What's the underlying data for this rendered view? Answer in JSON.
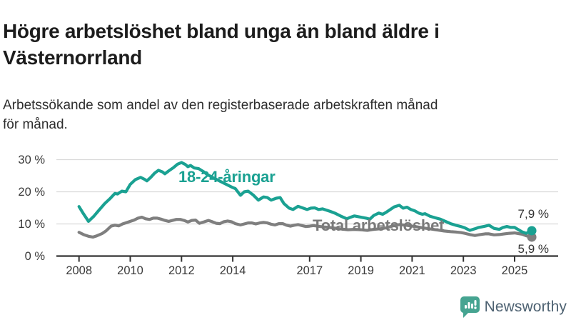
{
  "header": {
    "title": "Högre arbetslöshet bland unga än bland äldre i\nVästernorrland",
    "subtitle": "Arbetssökande som andel av den registerbaserade arbetskraften månad\nför månad."
  },
  "footer": {
    "brand": "Newsworthy",
    "logo_icon": "bar-chart-speech-bubble-icon",
    "brand_text_color": "#4e6272",
    "logo_color": "#46a491"
  },
  "chart_data": {
    "type": "line",
    "unit": "%",
    "grid": "horizontal",
    "legend_position": "inline-labels",
    "ylim": [
      0,
      30
    ],
    "xlim": [
      2008.0,
      2025.67
    ],
    "y_ticks": [
      {
        "value": 0,
        "label": "0 %"
      },
      {
        "value": 10,
        "label": "10 %"
      },
      {
        "value": 20,
        "label": "20 %"
      },
      {
        "value": 30,
        "label": "30 %"
      }
    ],
    "x_ticks": [
      {
        "year": 2008,
        "label": "2008"
      },
      {
        "year": 2010,
        "label": "2010"
      },
      {
        "year": 2012,
        "label": "2012"
      },
      {
        "year": 2014,
        "label": "2014"
      },
      {
        "year": 2017,
        "label": "2017"
      },
      {
        "year": 2019,
        "label": "2019"
      },
      {
        "year": 2021,
        "label": "2021"
      },
      {
        "year": 2023,
        "label": "2023"
      },
      {
        "year": 2025,
        "label": "2025"
      }
    ],
    "axis_color": "#333333",
    "gridline_color": "#d9d9d9",
    "tick_label_color": "#3a3a3a",
    "series": [
      {
        "name": "18-24-åringar",
        "color": "#1aa192",
        "end_label": "7,9 %",
        "end_value": 7.9,
        "points": [
          [
            2008.0,
            15.4
          ],
          [
            2008.17,
            13.2
          ],
          [
            2008.37,
            10.8
          ],
          [
            2008.58,
            12.4
          ],
          [
            2008.75,
            14.0
          ],
          [
            2009.0,
            16.3
          ],
          [
            2009.2,
            17.8
          ],
          [
            2009.4,
            19.5
          ],
          [
            2009.5,
            19.3
          ],
          [
            2009.67,
            20.2
          ],
          [
            2009.83,
            20.0
          ],
          [
            2010.0,
            22.3
          ],
          [
            2010.2,
            23.8
          ],
          [
            2010.4,
            24.5
          ],
          [
            2010.55,
            23.9
          ],
          [
            2010.65,
            23.4
          ],
          [
            2010.8,
            24.5
          ],
          [
            2010.95,
            25.8
          ],
          [
            2011.1,
            26.7
          ],
          [
            2011.25,
            26.2
          ],
          [
            2011.35,
            25.6
          ],
          [
            2011.5,
            26.5
          ],
          [
            2011.7,
            27.6
          ],
          [
            2011.85,
            28.6
          ],
          [
            2012.0,
            29.1
          ],
          [
            2012.15,
            28.5
          ],
          [
            2012.25,
            27.8
          ],
          [
            2012.35,
            28.2
          ],
          [
            2012.5,
            27.4
          ],
          [
            2012.67,
            27.2
          ],
          [
            2012.85,
            26.3
          ],
          [
            2013.0,
            25.4
          ],
          [
            2013.25,
            24.3
          ],
          [
            2013.5,
            23.3
          ],
          [
            2013.75,
            22.3
          ],
          [
            2014.0,
            21.3
          ],
          [
            2014.1,
            21.0
          ],
          [
            2014.3,
            18.9
          ],
          [
            2014.45,
            20.0
          ],
          [
            2014.6,
            20.2
          ],
          [
            2014.8,
            19.0
          ],
          [
            2015.0,
            17.4
          ],
          [
            2015.2,
            18.4
          ],
          [
            2015.35,
            18.2
          ],
          [
            2015.5,
            17.4
          ],
          [
            2015.7,
            18.0
          ],
          [
            2015.85,
            18.2
          ],
          [
            2016.0,
            16.3
          ],
          [
            2016.2,
            14.9
          ],
          [
            2016.35,
            14.5
          ],
          [
            2016.55,
            15.5
          ],
          [
            2016.75,
            14.9
          ],
          [
            2016.9,
            14.5
          ],
          [
            2017.05,
            14.9
          ],
          [
            2017.2,
            15.0
          ],
          [
            2017.35,
            14.5
          ],
          [
            2017.5,
            14.7
          ],
          [
            2017.65,
            14.3
          ],
          [
            2017.8,
            13.9
          ],
          [
            2018.0,
            13.3
          ],
          [
            2018.2,
            12.5
          ],
          [
            2018.45,
            11.6
          ],
          [
            2018.6,
            12.1
          ],
          [
            2018.75,
            12.5
          ],
          [
            2019.0,
            12.1
          ],
          [
            2019.2,
            11.8
          ],
          [
            2019.35,
            11.5
          ],
          [
            2019.5,
            12.6
          ],
          [
            2019.7,
            13.4
          ],
          [
            2019.85,
            13.0
          ],
          [
            2020.0,
            13.7
          ],
          [
            2020.15,
            14.5
          ],
          [
            2020.3,
            15.3
          ],
          [
            2020.5,
            15.8
          ],
          [
            2020.65,
            14.9
          ],
          [
            2020.8,
            15.2
          ],
          [
            2020.95,
            14.5
          ],
          [
            2021.1,
            14.1
          ],
          [
            2021.25,
            13.4
          ],
          [
            2021.4,
            13.0
          ],
          [
            2021.5,
            13.2
          ],
          [
            2021.7,
            12.4
          ],
          [
            2021.9,
            11.9
          ],
          [
            2022.1,
            11.5
          ],
          [
            2022.3,
            10.8
          ],
          [
            2022.5,
            10.1
          ],
          [
            2022.7,
            9.6
          ],
          [
            2022.9,
            9.2
          ],
          [
            2023.05,
            8.8
          ],
          [
            2023.25,
            8.0
          ],
          [
            2023.45,
            8.5
          ],
          [
            2023.6,
            8.9
          ],
          [
            2023.8,
            9.2
          ],
          [
            2024.0,
            9.6
          ],
          [
            2024.2,
            8.6
          ],
          [
            2024.4,
            8.3
          ],
          [
            2024.55,
            8.9
          ],
          [
            2024.7,
            9.2
          ],
          [
            2024.85,
            8.9
          ],
          [
            2025.0,
            8.9
          ],
          [
            2025.15,
            8.2
          ],
          [
            2025.3,
            7.5
          ],
          [
            2025.45,
            7.1
          ],
          [
            2025.67,
            7.9
          ]
        ]
      },
      {
        "name": "Total arbetslöshet",
        "color": "#7f7f7f",
        "end_label": "5,9 %",
        "end_value": 5.9,
        "points": [
          [
            2008.0,
            7.4
          ],
          [
            2008.2,
            6.6
          ],
          [
            2008.4,
            6.1
          ],
          [
            2008.55,
            5.9
          ],
          [
            2008.7,
            6.3
          ],
          [
            2008.9,
            7.0
          ],
          [
            2009.05,
            7.8
          ],
          [
            2009.25,
            9.3
          ],
          [
            2009.4,
            9.6
          ],
          [
            2009.55,
            9.4
          ],
          [
            2009.7,
            10.0
          ],
          [
            2009.85,
            10.4
          ],
          [
            2010.0,
            10.8
          ],
          [
            2010.15,
            11.2
          ],
          [
            2010.3,
            11.8
          ],
          [
            2010.45,
            12.1
          ],
          [
            2010.6,
            11.6
          ],
          [
            2010.75,
            11.4
          ],
          [
            2010.9,
            11.8
          ],
          [
            2011.05,
            11.8
          ],
          [
            2011.2,
            11.5
          ],
          [
            2011.35,
            11.1
          ],
          [
            2011.5,
            10.8
          ],
          [
            2011.65,
            11.1
          ],
          [
            2011.8,
            11.4
          ],
          [
            2011.95,
            11.4
          ],
          [
            2012.1,
            11.1
          ],
          [
            2012.25,
            10.6
          ],
          [
            2012.4,
            11.1
          ],
          [
            2012.55,
            11.2
          ],
          [
            2012.7,
            10.2
          ],
          [
            2012.9,
            10.7
          ],
          [
            2013.05,
            11.1
          ],
          [
            2013.2,
            10.7
          ],
          [
            2013.35,
            10.2
          ],
          [
            2013.5,
            10.1
          ],
          [
            2013.65,
            10.7
          ],
          [
            2013.8,
            10.9
          ],
          [
            2013.95,
            10.7
          ],
          [
            2014.1,
            10.1
          ],
          [
            2014.3,
            9.7
          ],
          [
            2014.45,
            10.0
          ],
          [
            2014.6,
            10.3
          ],
          [
            2014.75,
            10.3
          ],
          [
            2014.9,
            10.0
          ],
          [
            2015.05,
            10.3
          ],
          [
            2015.2,
            10.5
          ],
          [
            2015.35,
            10.3
          ],
          [
            2015.5,
            9.9
          ],
          [
            2015.65,
            9.7
          ],
          [
            2015.8,
            10.1
          ],
          [
            2015.95,
            10.1
          ],
          [
            2016.1,
            9.6
          ],
          [
            2016.25,
            9.3
          ],
          [
            2016.4,
            9.6
          ],
          [
            2016.55,
            9.8
          ],
          [
            2016.7,
            9.5
          ],
          [
            2016.85,
            9.2
          ],
          [
            2017.0,
            9.3
          ],
          [
            2017.15,
            9.5
          ],
          [
            2017.3,
            9.3
          ],
          [
            2017.5,
            9.1
          ],
          [
            2017.75,
            8.9
          ],
          [
            2018.0,
            8.7
          ],
          [
            2018.25,
            8.4
          ],
          [
            2018.5,
            8.2
          ],
          [
            2018.75,
            8.3
          ],
          [
            2019.0,
            8.2
          ],
          [
            2019.25,
            8.0
          ],
          [
            2019.5,
            8.3
          ],
          [
            2019.75,
            8.5
          ],
          [
            2020.0,
            8.8
          ],
          [
            2020.25,
            9.4
          ],
          [
            2020.5,
            9.8
          ],
          [
            2020.75,
            9.6
          ],
          [
            2021.0,
            9.3
          ],
          [
            2021.25,
            9.0
          ],
          [
            2021.5,
            8.7
          ],
          [
            2021.75,
            8.4
          ],
          [
            2022.0,
            8.1
          ],
          [
            2022.25,
            7.8
          ],
          [
            2022.5,
            7.6
          ],
          [
            2022.7,
            7.5
          ],
          [
            2022.9,
            7.3
          ],
          [
            2023.05,
            7.1
          ],
          [
            2023.25,
            6.7
          ],
          [
            2023.45,
            6.4
          ],
          [
            2023.65,
            6.7
          ],
          [
            2023.85,
            6.9
          ],
          [
            2024.0,
            6.9
          ],
          [
            2024.2,
            6.6
          ],
          [
            2024.4,
            6.7
          ],
          [
            2024.6,
            6.9
          ],
          [
            2024.8,
            7.1
          ],
          [
            2025.0,
            7.2
          ],
          [
            2025.15,
            7.0
          ],
          [
            2025.3,
            6.8
          ],
          [
            2025.45,
            6.3
          ],
          [
            2025.67,
            5.9
          ]
        ]
      }
    ]
  }
}
